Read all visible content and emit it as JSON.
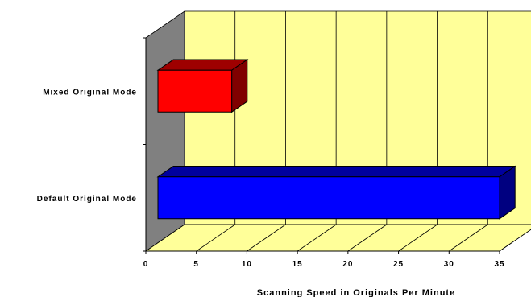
{
  "chart_data": {
    "type": "bar",
    "orientation": "horizontal",
    "style": "3d",
    "title": "",
    "xlabel": "Scanning Speed in Originals Per Minute",
    "ylabel": "",
    "categories": [
      "Default Original Mode",
      "Mixed Original Mode"
    ],
    "values": [
      35,
      8.5
    ],
    "bar_colors": [
      "#0000ff",
      "#ff0000"
    ],
    "xlim": [
      0,
      35
    ],
    "x_ticks": [
      "0",
      "5",
      "10",
      "15",
      "20",
      "25",
      "30",
      "35"
    ],
    "grid": true,
    "legend": "none",
    "wall_color": "#ffff99",
    "side_wall_color": "#808080"
  }
}
